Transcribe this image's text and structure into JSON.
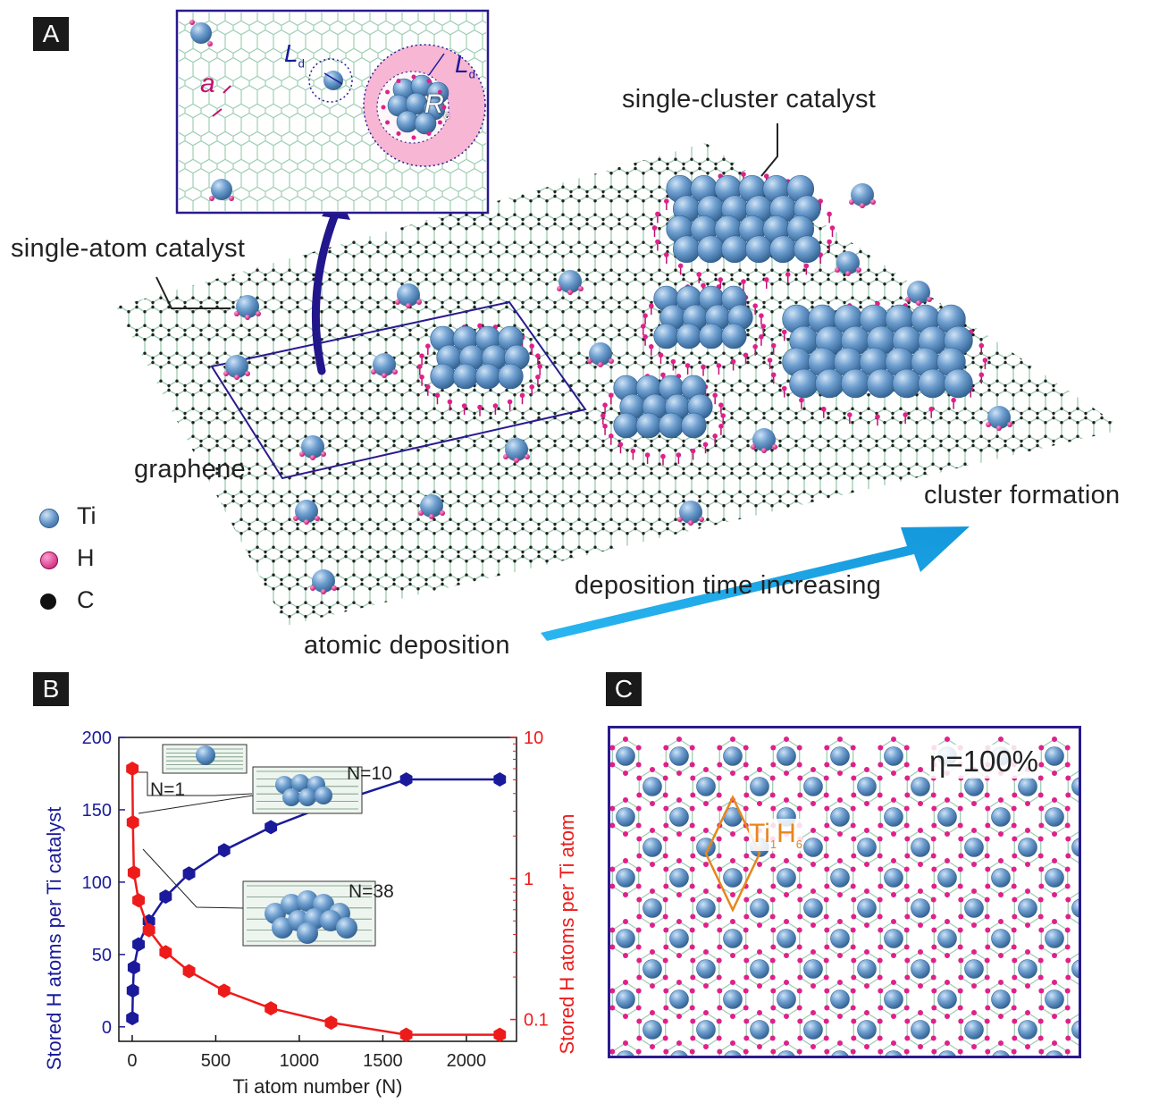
{
  "panels": {
    "a": "A",
    "b": "B",
    "c": "C"
  },
  "colors": {
    "ti": "#5d8fc4",
    "ti_light": "#9fc3e6",
    "ti_dark": "#2f5f8f",
    "h": "#e0208a",
    "c": "#222222",
    "bond": "#9fcfb4",
    "frame": "#2a1a8f",
    "arrow_dark": "#22168c",
    "arrow_light": "#19a6e6",
    "pink_zone": "#f7b6d3",
    "orange": "#e8861a",
    "series_blue": "#1a1a9a",
    "series_red": "#ee1b1b"
  },
  "panel_a": {
    "labels": {
      "single_atom": "single-atom catalyst",
      "single_cluster": "single-cluster catalyst",
      "graphene": "graphene",
      "cluster_formation": "cluster formation",
      "deposition_time": "deposition time increasing",
      "atomic_deposition": "atomic deposition"
    },
    "legend": [
      {
        "label": "Ti",
        "color": "#5d8fc4"
      },
      {
        "label": "H",
        "color": "#e0208a"
      },
      {
        "label": "C",
        "color": "#111111"
      }
    ],
    "inset": {
      "a": "a",
      "Ld_main": "L",
      "Ld_sub": "d",
      "Rc_main": "R",
      "Rc_sub": "c"
    }
  },
  "panel_c": {
    "eta": "η=100%",
    "formula": {
      "t1": "Ti",
      "s1": "1",
      "t2": "H",
      "s2": "6"
    }
  },
  "chart_data": {
    "type": "line",
    "xlabel": "Ti atom number (N)",
    "ylabel_left": "Stored H atoms per Ti catalyst",
    "ylabel_right": "Stored H atoms per Ti atom",
    "xlim": [
      -80,
      2300
    ],
    "ylim_left": [
      -10,
      200
    ],
    "ylim_right_log": [
      0.07,
      10
    ],
    "x_ticks": [
      "0",
      "500",
      "1000",
      "1500",
      "2000"
    ],
    "y_left_ticks": [
      "0",
      "50",
      "100",
      "150",
      "200"
    ],
    "y_right_ticks": [
      "0.1",
      "1",
      "10"
    ],
    "series": [
      {
        "name": "Stored H atoms per Ti catalyst",
        "axis": "left",
        "color": "#1a1a9a",
        "x": [
          1,
          4,
          10,
          38,
          100,
          200,
          340,
          550,
          830,
          1190,
          1640,
          2200
        ],
        "y": [
          6,
          25,
          41,
          57,
          73,
          90,
          106,
          122,
          138,
          154,
          171,
          171
        ]
      },
      {
        "name": "Stored H atoms per Ti atom",
        "axis": "right",
        "color": "#ee1b1b",
        "x": [
          1,
          4,
          10,
          38,
          100,
          200,
          340,
          550,
          830,
          1190,
          1640,
          2200
        ],
        "y": [
          6.0,
          2.5,
          1.1,
          0.7,
          0.43,
          0.3,
          0.22,
          0.16,
          0.12,
          0.095,
          0.078,
          0.078
        ]
      }
    ],
    "annotations": [
      "N=1",
      "N=10",
      "N=38"
    ]
  }
}
